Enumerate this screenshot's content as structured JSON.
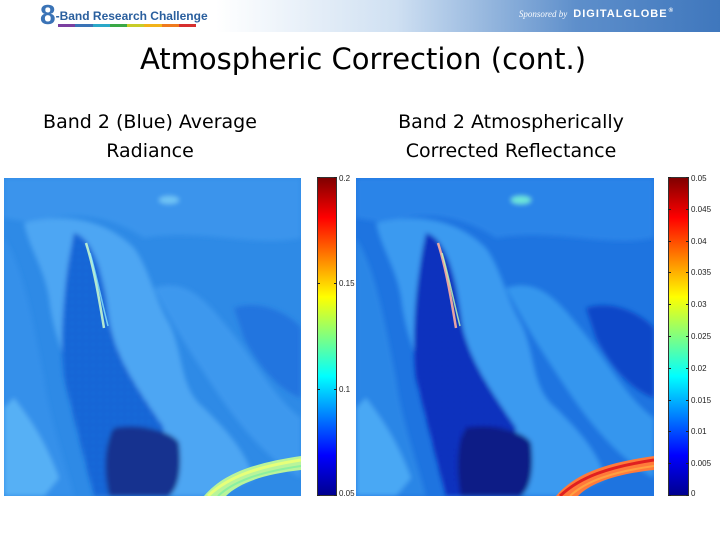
{
  "header": {
    "logo_number": "8",
    "logo_text": "-Band Research Challenge",
    "logo_bar_colors": [
      "#7b3fa0",
      "#3a73b6",
      "#2aa8c8",
      "#3aa845",
      "#c8cc28",
      "#f2b319",
      "#ef7a1d",
      "#d62f2f"
    ],
    "sponsor_label": "Sponsored by",
    "sponsor_brand": "DIGITALGLOBE"
  },
  "title": "Atmospheric Correction (cont.)",
  "panels": {
    "left": {
      "label_line1": "Band 2 (Blue) Average",
      "label_line2": "Radiance",
      "colorbar_ticks": [
        "0.2",
        "0.15",
        "0.1",
        "0.05"
      ],
      "colorbar_range": [
        0.05,
        0.2
      ],
      "colorbar_tick_values": [
        0.2,
        0.15,
        0.1,
        0.05
      ]
    },
    "right": {
      "label_line1": "Band 2 Atmospherically",
      "label_line2": "Corrected Reflectance",
      "colorbar_ticks": [
        "0.05",
        "0.045",
        "0.04",
        "0.035",
        "0.03",
        "0.025",
        "0.02",
        "0.015",
        "0.01",
        "0.005",
        "0"
      ],
      "colorbar_range": [
        0,
        0.05
      ],
      "colorbar_tick_values": [
        0.05,
        0.045,
        0.04,
        0.035,
        0.03,
        0.025,
        0.02,
        0.015,
        0.01,
        0.005,
        0
      ]
    }
  },
  "colors": {
    "jet": [
      "#00008f",
      "#0000ff",
      "#0080ff",
      "#00ffff",
      "#80ff80",
      "#ffff00",
      "#ff8000",
      "#ff0000",
      "#800000"
    ]
  }
}
